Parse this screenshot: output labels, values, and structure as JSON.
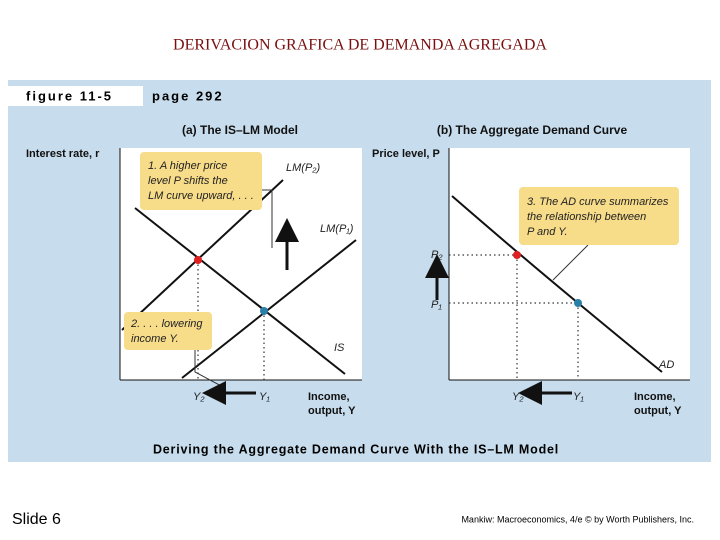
{
  "slide": {
    "title": "DERIVACION GRAFICA DE DEMANDA AGREGADA",
    "number": "Slide 6",
    "credit": "Mankiw: Macroeconomics, 4/e © by Worth Publishers, Inc."
  },
  "figure": {
    "label": "figure 11-5",
    "page": "page 292",
    "caption": "Deriving the Aggregate Demand Curve With the IS–LM Model"
  },
  "panel_a": {
    "title": "(a) The IS–LM Model",
    "y_label": "Interest rate, r",
    "x_label": [
      "Income,",
      "output, Y"
    ],
    "annotation_1": [
      "1. A higher price",
      "level P shifts the",
      "LM curve upward, . . ."
    ],
    "annotation_2": [
      "2. . . . lowering",
      "income Y."
    ],
    "lm_high": "LM(P₂)",
    "lm_low": "LM(P₁)",
    "is": "IS",
    "y2": "Y₂",
    "y1": "Y₁"
  },
  "panel_b": {
    "title": "(b) The Aggregate Demand Curve",
    "y_label": "Price level, P",
    "x_label": [
      "Income,",
      "output, Y"
    ],
    "annotation_3": [
      "3. The AD curve summarizes",
      "the relationship between",
      "P and Y."
    ],
    "p2": "P₂",
    "p1": "P₁",
    "ad": "AD",
    "y2": "Y₂",
    "y1": "Y₁"
  }
}
